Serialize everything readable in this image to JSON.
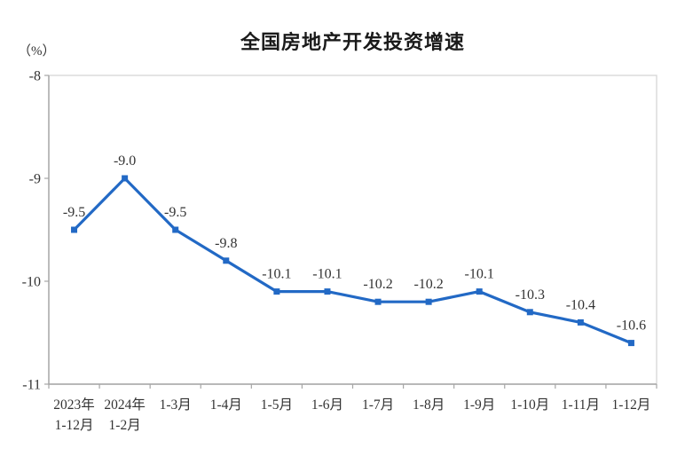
{
  "chart_data": {
    "type": "line",
    "title": "全国房地产开发投资增速",
    "ylabel": "（%）",
    "categories": [
      "2023年\n1-12月",
      "2024年\n1-2月",
      "1-3月",
      "1-4月",
      "1-5月",
      "1-6月",
      "1-7月",
      "1-8月",
      "1-9月",
      "1-10月",
      "1-11月",
      "1-12月"
    ],
    "values": [
      -9.5,
      -9.0,
      -9.5,
      -9.8,
      -10.1,
      -10.1,
      -10.2,
      -10.2,
      -10.1,
      -10.3,
      -10.4,
      -10.6
    ],
    "data_labels": [
      "-9.5",
      "-9.0",
      "-9.5",
      "-9.8",
      "-10.1",
      "-10.1",
      "-10.2",
      "-10.2",
      "-10.1",
      "-10.3",
      "-10.4",
      "-10.6"
    ],
    "ylim": [
      -11,
      -8
    ],
    "yticks": [
      -8,
      -9,
      -10,
      -11
    ],
    "grid": false,
    "legend": "none",
    "line_color": "#2269c5",
    "marker": "square",
    "plot_border_color": "#d9d9d9",
    "axis_color": "#a6a6a6"
  }
}
